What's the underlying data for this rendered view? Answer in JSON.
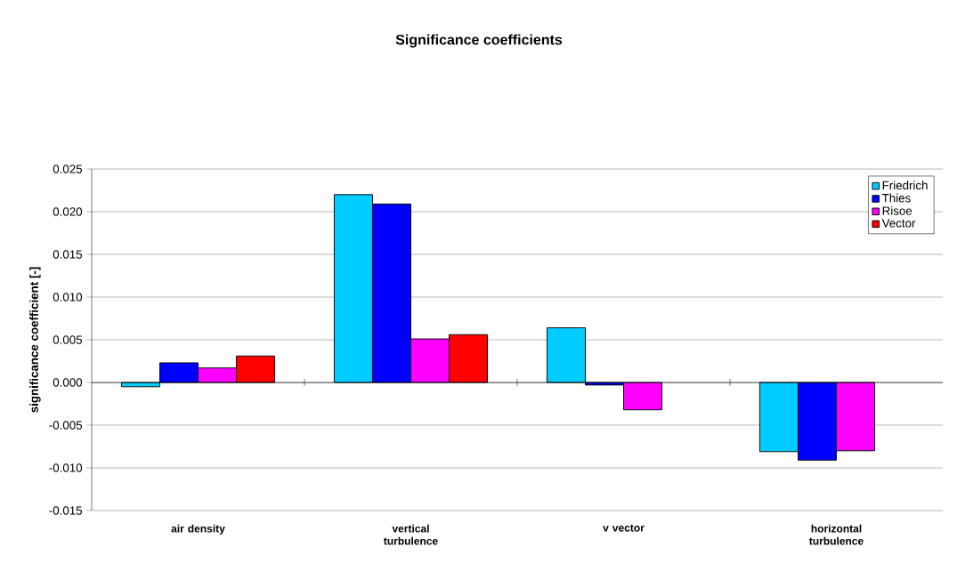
{
  "chart_data": {
    "type": "bar",
    "title": "Significance coefficients",
    "ylabel": "significance coefficient [-]",
    "categories": [
      "air density",
      "vertical turbulence",
      "v vector",
      "horizontal turbulence"
    ],
    "series": [
      {
        "name": "Friedrich",
        "color": "#00ccff",
        "values": [
          -0.0005,
          0.022,
          0.0064,
          -0.0081
        ]
      },
      {
        "name": "Thies",
        "color": "#0000ff",
        "values": [
          0.0023,
          0.0209,
          -0.0003,
          -0.0091
        ]
      },
      {
        "name": "Risoe",
        "color": "#ff00ff",
        "values": [
          0.0017,
          0.0051,
          -0.0032,
          -0.008
        ]
      },
      {
        "name": "Vector",
        "color": "#ff0000",
        "values": [
          0.0031,
          0.0056,
          null,
          null
        ]
      }
    ],
    "ylim": [
      -0.015,
      0.025
    ],
    "yticks": [
      {
        "value": -0.015,
        "label": "-0.015"
      },
      {
        "value": -0.01,
        "label": "-0.010"
      },
      {
        "value": -0.005,
        "label": "-0.005"
      },
      {
        "value": 0,
        "label": "0.000"
      },
      {
        "value": 0.005,
        "label": "0.005"
      },
      {
        "value": 0.01,
        "label": "0.010"
      },
      {
        "value": 0.015,
        "label": "0.015"
      },
      {
        "value": 0.02,
        "label": "0.020"
      },
      {
        "value": 0.025,
        "label": "0.025"
      }
    ],
    "grid": "y",
    "legend": "top right"
  }
}
